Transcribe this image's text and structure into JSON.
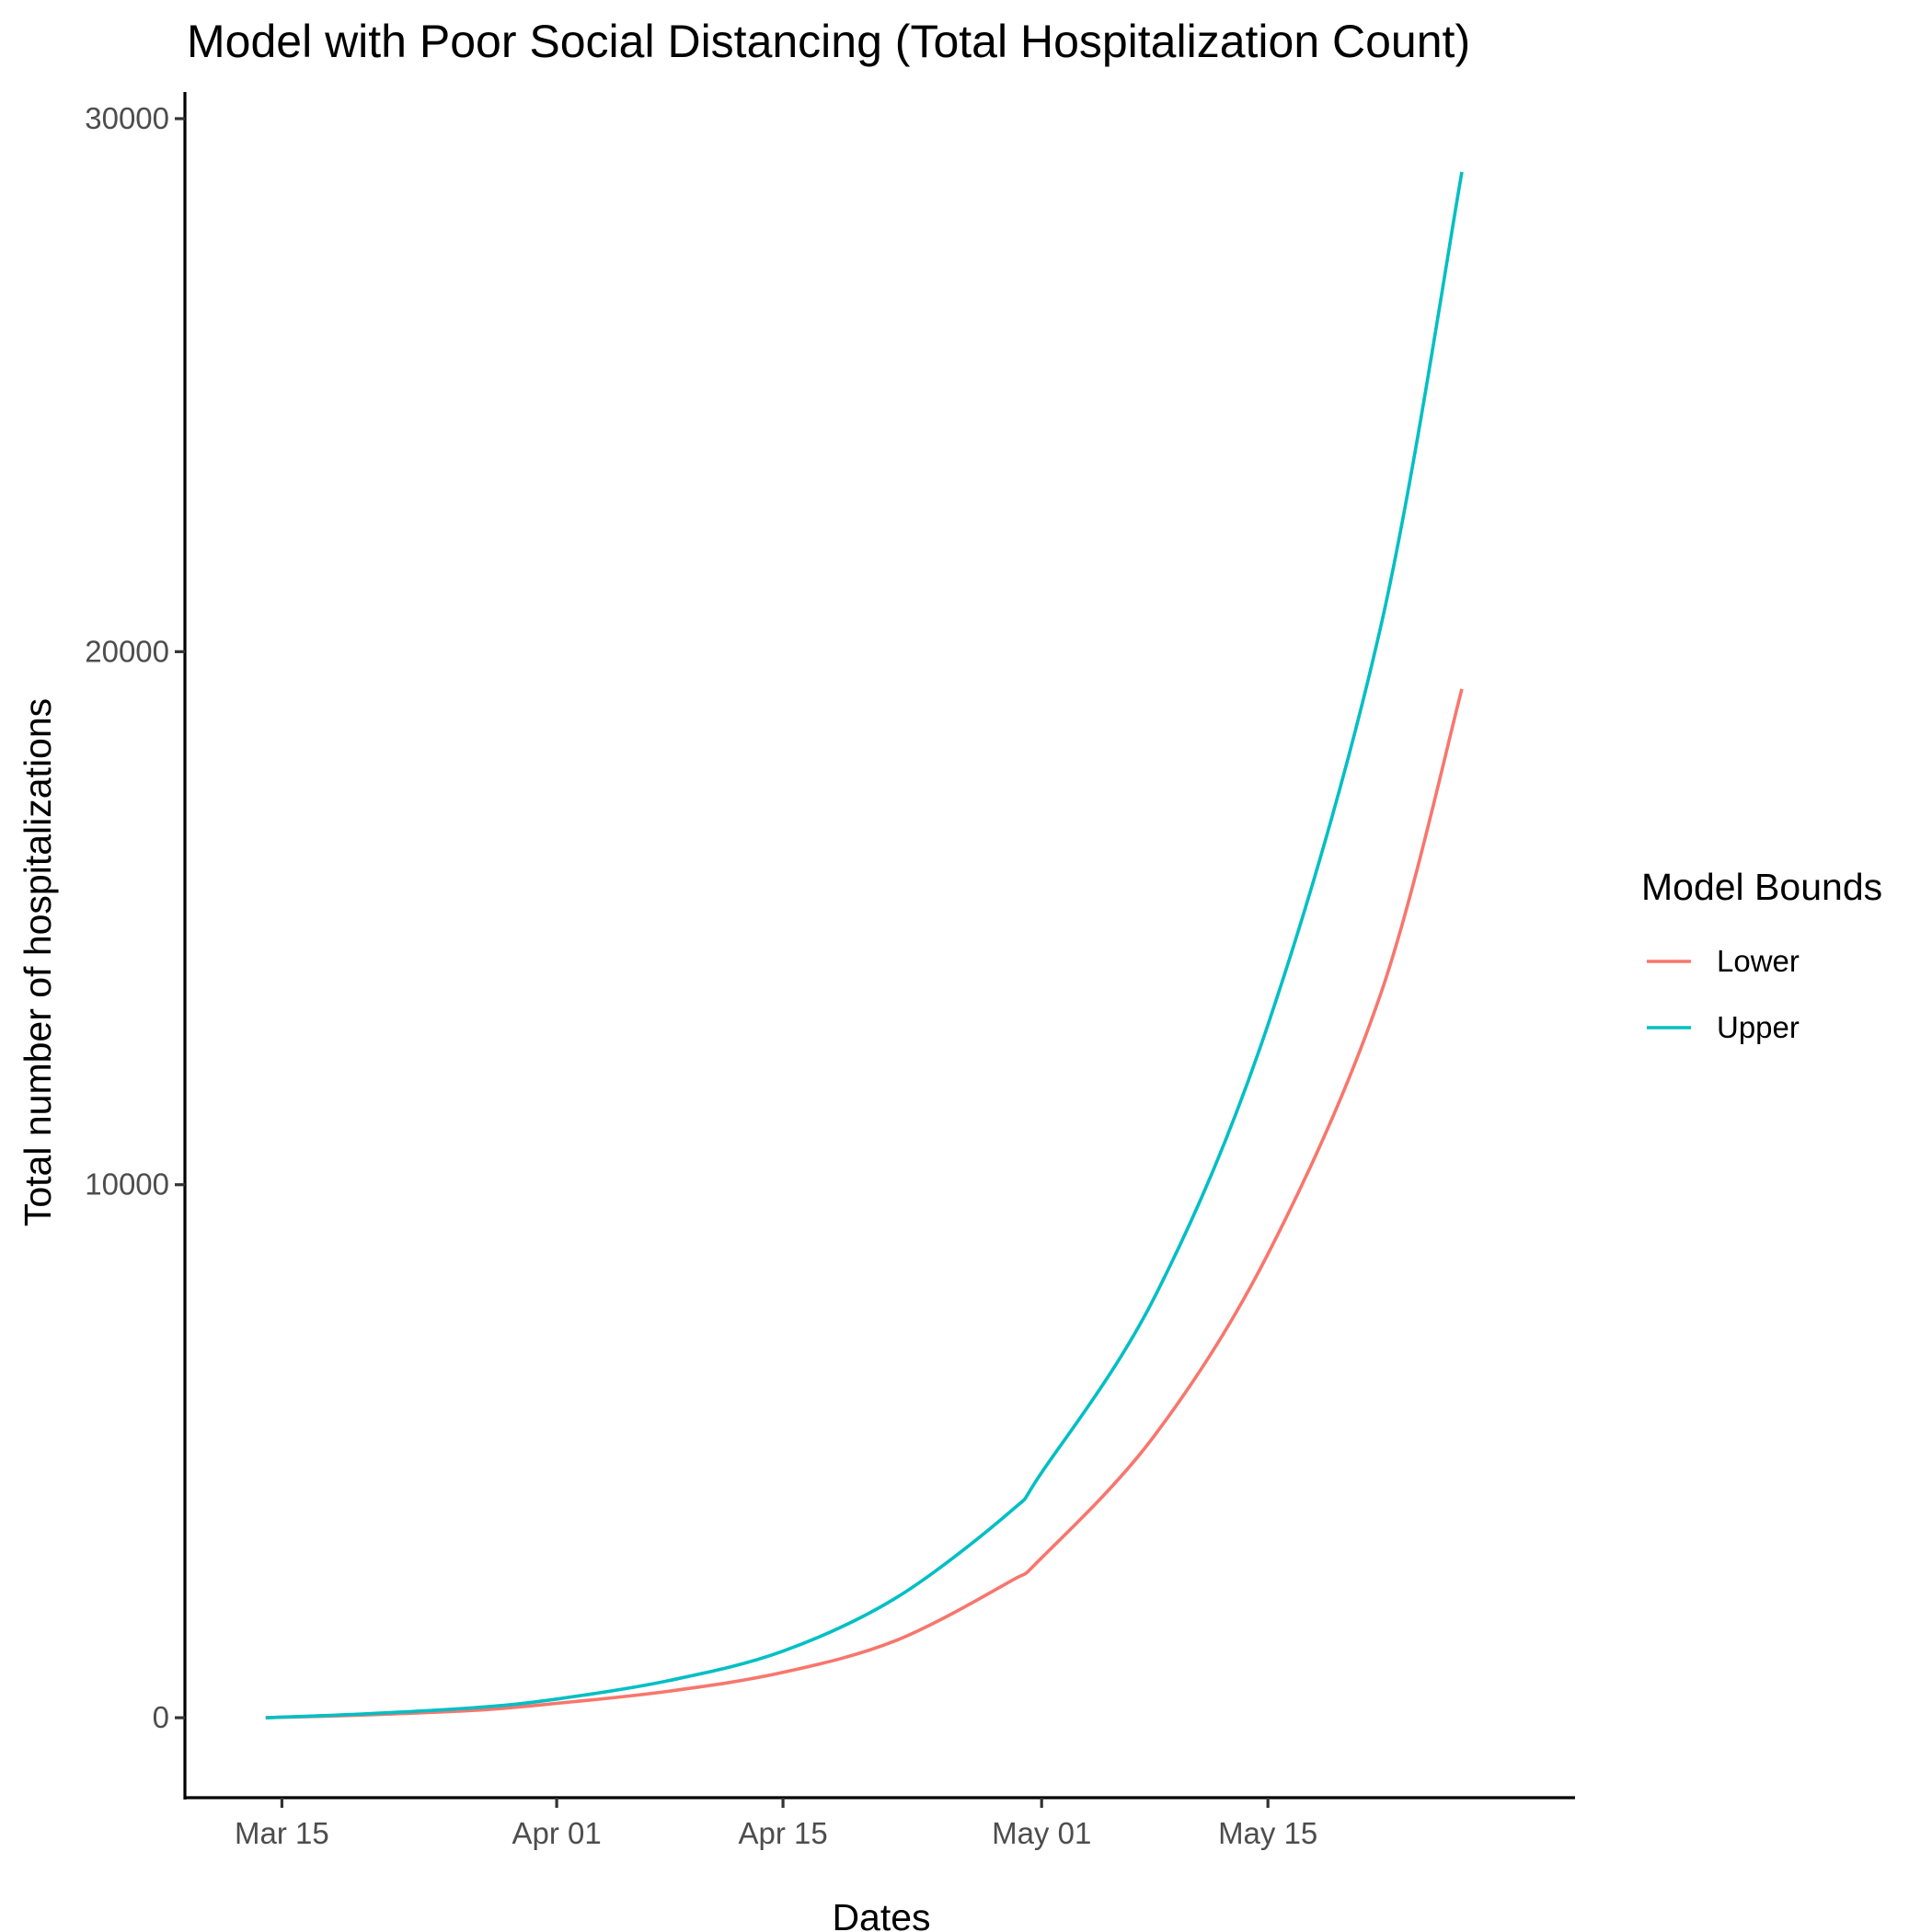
{
  "chart_data": {
    "type": "line",
    "title": "Model with Poor Social Distancing (Total Hospitalization Count)",
    "xlabel": "Dates",
    "ylabel": "Total number of hospitalizations",
    "x_axis": {
      "kind": "date",
      "tick_labels": [
        "Mar 15",
        "Apr 01",
        "Apr 15",
        "May 01",
        "May 15"
      ],
      "tick_dates": [
        "2020-03-15",
        "2020-04-01",
        "2020-04-15",
        "2020-05-01",
        "2020-05-15"
      ],
      "range": [
        "2020-03-09",
        "2020-06-03"
      ]
    },
    "y_axis": {
      "tick_labels": [
        "0",
        "10000",
        "20000",
        "30000"
      ],
      "ticks": [
        0,
        10000,
        20000,
        30000
      ],
      "range": [
        -1500,
        30500
      ]
    },
    "grid": false,
    "legend": {
      "title": "Model Bounds",
      "placement": "right"
    },
    "series": [
      {
        "name": "Lower",
        "color": "#F8766D",
        "points": [
          [
            "2020-03-14",
            0
          ],
          [
            "2020-03-20",
            50
          ],
          [
            "2020-03-27",
            140
          ],
          [
            "2020-04-01",
            270
          ],
          [
            "2020-04-08",
            500
          ],
          [
            "2020-04-15",
            850
          ],
          [
            "2020-04-22",
            1450
          ],
          [
            "2020-04-29",
            2550
          ],
          [
            "2020-05-01",
            3000
          ],
          [
            "2020-05-08",
            5300
          ],
          [
            "2020-05-15",
            8700
          ],
          [
            "2020-05-22",
            13600
          ],
          [
            "2020-05-27",
            19300
          ]
        ]
      },
      {
        "name": "Upper",
        "color": "#00BFC4",
        "points": [
          [
            "2020-03-14",
            0
          ],
          [
            "2020-03-20",
            70
          ],
          [
            "2020-03-27",
            190
          ],
          [
            "2020-04-01",
            350
          ],
          [
            "2020-04-08",
            700
          ],
          [
            "2020-04-15",
            1250
          ],
          [
            "2020-04-22",
            2250
          ],
          [
            "2020-04-29",
            3850
          ],
          [
            "2020-05-01",
            4600
          ],
          [
            "2020-05-08",
            7900
          ],
          [
            "2020-05-15",
            13000
          ],
          [
            "2020-05-22",
            20500
          ],
          [
            "2020-05-27",
            29000
          ]
        ]
      }
    ]
  }
}
